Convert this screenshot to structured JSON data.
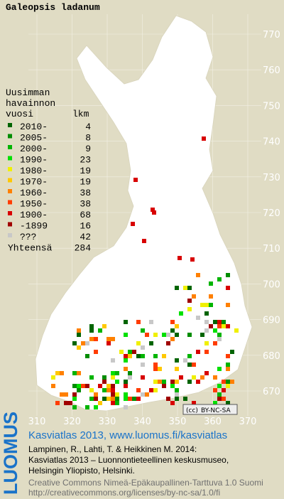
{
  "title": "Galeopsis ladanum",
  "legend": {
    "header": [
      "Uusimman",
      "havainnon",
      "vuosi",
      "lkm"
    ],
    "rows": [
      {
        "label": "2010-",
        "count": "4",
        "color": "#006400"
      },
      {
        "label": "2005-",
        "count": "8",
        "color": "#008c00"
      },
      {
        "label": "2000-",
        "count": "9",
        "color": "#00b400"
      },
      {
        "label": "1990-",
        "count": "23",
        "color": "#00e000"
      },
      {
        "label": "1980-",
        "count": "19",
        "color": "#f0f000"
      },
      {
        "label": "1970-",
        "count": "19",
        "color": "#ffc800"
      },
      {
        "label": "1960-",
        "count": "38",
        "color": "#ff8000"
      },
      {
        "label": "1950-",
        "count": "38",
        "color": "#ff3c00"
      },
      {
        "label": "1900-",
        "count": "68",
        "color": "#d80000"
      },
      {
        "label": "-1899",
        "count": "16",
        "color": "#a00000"
      },
      {
        "label": "???",
        "count": "42",
        "color": "#c8c8c8"
      }
    ],
    "total_label": "Yhteensä",
    "total": "284"
  },
  "grid": {
    "x_labels": [
      "310",
      "320",
      "330",
      "340",
      "350",
      "360",
      "370"
    ],
    "y_labels": [
      "770",
      "760",
      "750",
      "740",
      "730",
      "720",
      "710",
      "700",
      "690",
      "680",
      "670"
    ]
  },
  "badge": {
    "cc": "(cc)",
    "license": "BY-NC-SA"
  },
  "footer": {
    "logo": "LUOMUS",
    "heading": "Kasviatlas 2013, www.luomus.fi/kasviatlas",
    "citation": [
      "Lampinen, R., Lahti, T. & Heikkinen M. 2014:",
      "Kasviatlas 2013 – Luonnontieteellinen keskusmuseo,",
      "Helsingin Yliopisto, Helsinki."
    ],
    "license": [
      "Creative Commons Nimeä-Epäkaupallinen-Tarttuva 1.0 Suomi",
      "http://creativecommons.org/licenses/by-nc-sa/1.0/fi"
    ]
  }
}
